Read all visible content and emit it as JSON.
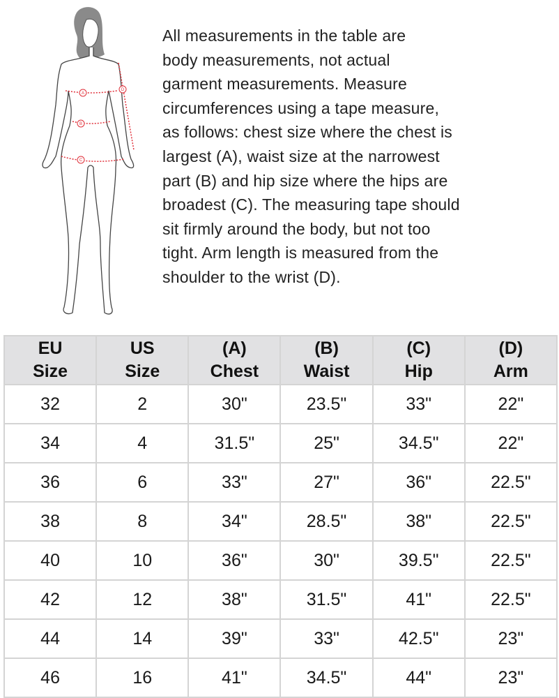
{
  "figure": {
    "labels": [
      "A",
      "B",
      "C",
      "D"
    ],
    "measure_line_color": "#e0303a"
  },
  "description": {
    "lines": [
      "All measurements in the table are",
      "body measurements, not actual",
      "garment measurements. Measure",
      "circumferences using a tape measure,",
      "as follows: chest size where the chest is",
      "largest (A), waist size at the narrowest",
      "part (B) and hip size where the hips are",
      "broadest (C). The measuring tape should",
      "sit firmly around the body, but not too",
      "tight. Arm length is measured from the",
      "shoulder to the wrist (D)."
    ]
  },
  "table": {
    "headers": [
      [
        "EU",
        "Size"
      ],
      [
        "US",
        "Size"
      ],
      [
        "(A)",
        "Chest"
      ],
      [
        "(B)",
        "Waist"
      ],
      [
        "(C)",
        "Hip"
      ],
      [
        "(D)",
        "Arm"
      ]
    ],
    "rows": [
      [
        "32",
        "2",
        "30\"",
        "23.5\"",
        "33\"",
        "22\""
      ],
      [
        "34",
        "4",
        "31.5\"",
        "25\"",
        "34.5\"",
        "22\""
      ],
      [
        "36",
        "6",
        "33\"",
        "27\"",
        "36\"",
        "22.5\""
      ],
      [
        "38",
        "8",
        "34\"",
        "28.5\"",
        "38\"",
        "22.5\""
      ],
      [
        "40",
        "10",
        "36\"",
        "30\"",
        "39.5\"",
        "22.5\""
      ],
      [
        "42",
        "12",
        "38\"",
        "31.5\"",
        "41\"",
        "22.5\""
      ],
      [
        "44",
        "14",
        "39\"",
        "33\"",
        "42.5\"",
        "23\""
      ],
      [
        "46",
        "16",
        "41\"",
        "34.5\"",
        "44\"",
        "23\""
      ]
    ]
  }
}
